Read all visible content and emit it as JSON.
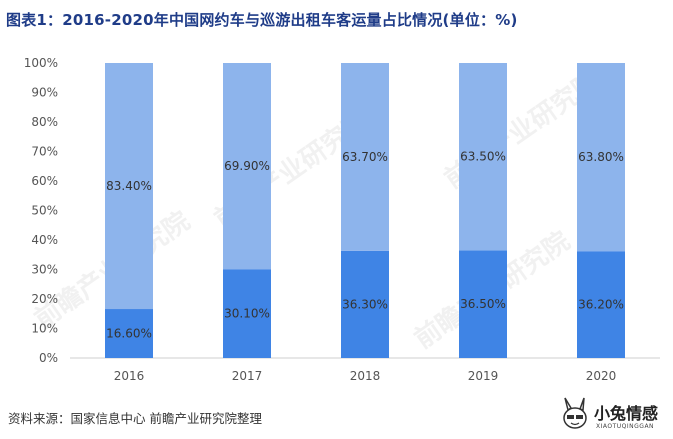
{
  "title": "图表1：2016-2020年中国网约车与巡游出租车客运量占比情况(单位：%)",
  "source": "资料来源：国家信息中心 前瞻产业研究院整理",
  "watermark": "前瞻产业研究院",
  "logo": {
    "text": "小兔情感",
    "subtext": "XIAOTUQINGGAN",
    "icon": "rabbit-mascot-icon"
  },
  "colors": {
    "top_series": "#8db4ec",
    "bottom_series": "#3f84e5"
  },
  "chart_data": {
    "type": "bar",
    "stacked": true,
    "categories": [
      "2016",
      "2017",
      "2018",
      "2019",
      "2020"
    ],
    "series": [
      {
        "values": [
          16.6,
          30.1,
          36.3,
          36.5,
          36.2
        ],
        "labels": [
          "16.60%",
          "30.10%",
          "36.30%",
          "36.50%",
          "36.20%"
        ]
      },
      {
        "values": [
          83.4,
          69.9,
          63.7,
          63.5,
          63.8
        ],
        "labels": [
          "83.40%",
          "69.90%",
          "63.70%",
          "63.50%",
          "63.80%"
        ]
      }
    ],
    "ylim": [
      0,
      100
    ],
    "yticks": [
      "0%",
      "10%",
      "20%",
      "30%",
      "40%",
      "50%",
      "60%",
      "70%",
      "80%",
      "90%",
      "100%"
    ],
    "legend": "none",
    "grid": false
  }
}
